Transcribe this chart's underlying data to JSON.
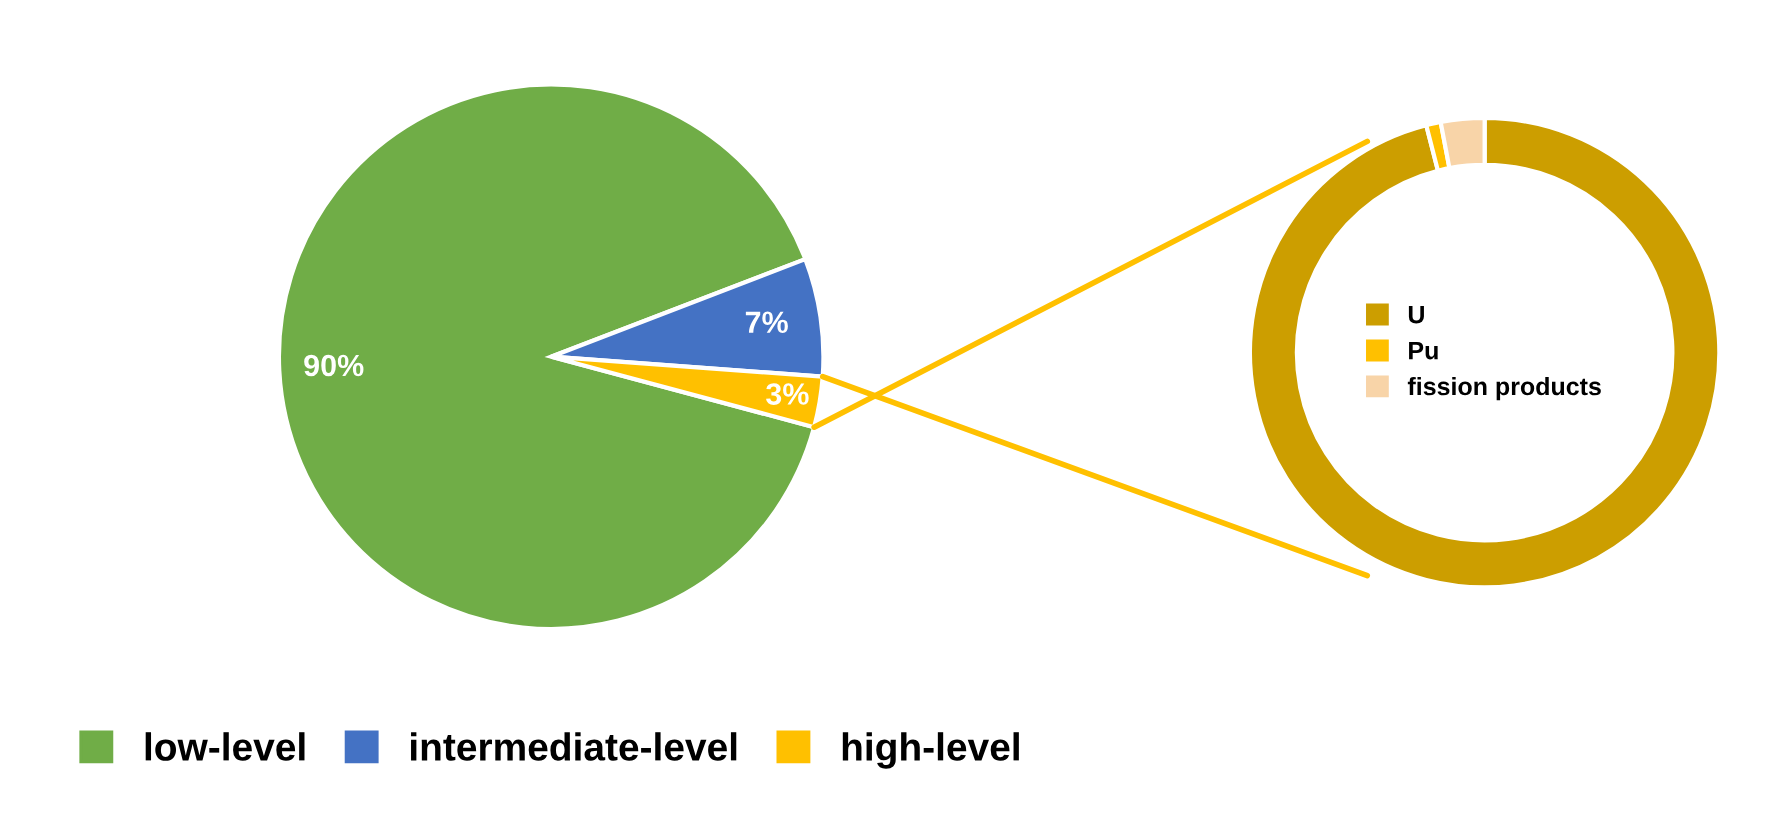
{
  "chart_data": [
    {
      "type": "pie",
      "categories": [
        "low-level",
        "intermediate-level",
        "high-level"
      ],
      "values": [
        90,
        7,
        3
      ],
      "colors": [
        "#70ad47",
        "#4472c4",
        "#ffc000"
      ],
      "value_labels": [
        "90%",
        "7%",
        "3%"
      ],
      "legend": "bottom"
    },
    {
      "type": "donut",
      "categories": [
        "U",
        "Pu",
        "fission products"
      ],
      "values": [
        96,
        1,
        3
      ],
      "colors": [
        "#cc9e00",
        "#ffc000",
        "#f8d4a8"
      ],
      "legend": "center"
    }
  ]
}
